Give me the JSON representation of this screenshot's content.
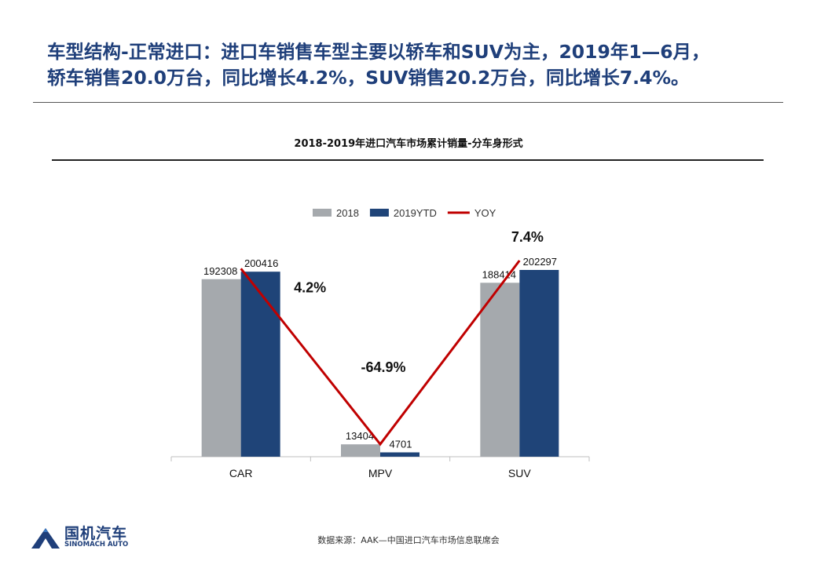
{
  "headline": {
    "line1": "车型结构-正常进口：进口车销售车型主要以轿车和SUV为主，2019年1—6月，",
    "line2": "轿车销售20.0万台，同比增长4.2%，SUV销售20.2万台，同比增长7.4%。"
  },
  "chart_data": {
    "type": "bar",
    "title": "2018-2019年进口汽车市场累计销量-分车身形式",
    "categories": [
      "CAR",
      "MPV",
      "SUV"
    ],
    "series": [
      {
        "name": "2018",
        "values": [
          192308,
          13404,
          188414
        ],
        "color": "#a5a9ad"
      },
      {
        "name": "2019YTD",
        "values": [
          200416,
          4701,
          202297
        ],
        "color": "#1f4478"
      }
    ],
    "line_series": {
      "name": "YOY",
      "values": [
        4.2,
        -64.9,
        7.4
      ],
      "labels": [
        "4.2%",
        "-64.9%",
        "7.4%"
      ],
      "color": "#c00000"
    },
    "xlabel": "",
    "ylabel": "",
    "ylim": [
      0,
      202297
    ],
    "grid": false,
    "legend": "top"
  },
  "footer": {
    "source": "数据来源：AAK—中国进口汽车市场信息联席会",
    "logo_cn": "国机汽车",
    "logo_en": "SINOMACH AUTO"
  },
  "colors": {
    "headline": "#1f3f7a",
    "brand": "#1f3f7a"
  }
}
